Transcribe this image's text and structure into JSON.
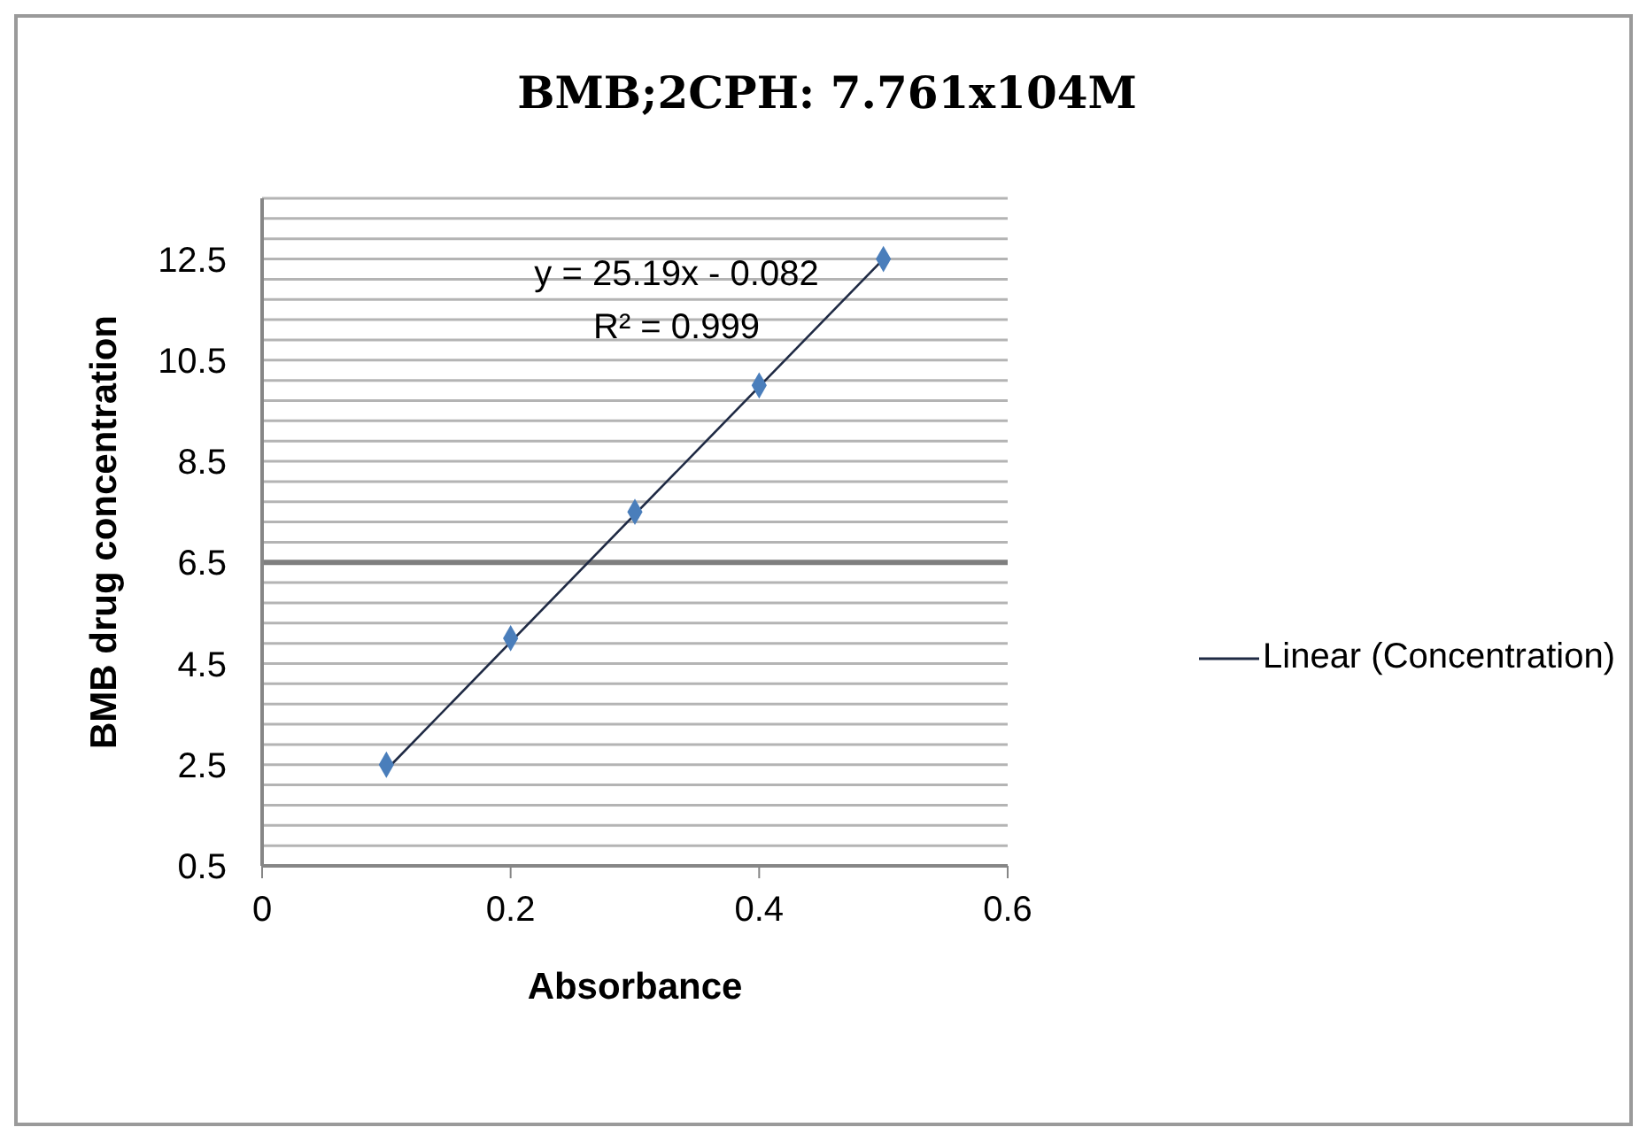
{
  "chart_data": {
    "type": "scatter",
    "title": "BMB;2CPH: 7.761x104M",
    "xlabel": "Absorbance",
    "ylabel": "BMB drug concentration",
    "annotations": [
      "y = 25.19x - 0.082",
      "R² = 0.999"
    ],
    "series": [
      {
        "color": "#4a7ebb",
        "marker": "diamond",
        "x": [
          0.1,
          0.2,
          0.3,
          0.4,
          0.5
        ],
        "values": [
          2.5,
          5,
          7.5,
          10,
          12.5
        ]
      },
      {
        "type": "line",
        "name": "Linear (Concentration)",
        "color": "#1f2a44",
        "marker": "none",
        "x": [
          0.1,
          0.5
        ],
        "values": [
          2.4,
          12.5
        ]
      }
    ],
    "xlim": [
      0,
      0.6
    ],
    "xticks": [
      0,
      0.2,
      0.4,
      0.6
    ],
    "ylim": [
      0.5,
      13.7
    ],
    "yticks": [
      0.5,
      {
        "value": 0.9,
        "label": null
      },
      {
        "value": 1.3,
        "label": null
      },
      {
        "value": 1.7,
        "label": null
      },
      {
        "value": 2.1,
        "label": null
      },
      2.5,
      {
        "value": 2.9,
        "label": null
      },
      {
        "value": 3.3,
        "label": null
      },
      {
        "value": 3.7,
        "label": null
      },
      {
        "value": 4.1,
        "label": null
      },
      4.5,
      {
        "value": 4.9,
        "label": null
      },
      {
        "value": 5.3,
        "label": null
      },
      {
        "value": 5.7,
        "label": null
      },
      {
        "value": 6.1,
        "label": null
      },
      6.5,
      {
        "value": 6.9,
        "label": null
      },
      {
        "value": 7.3,
        "label": null
      },
      {
        "value": 7.7,
        "label": null
      },
      {
        "value": 8.1,
        "label": null
      },
      8.5,
      {
        "value": 8.9,
        "label": null
      },
      {
        "value": 9.3,
        "label": null
      },
      {
        "value": 9.7,
        "label": null
      },
      {
        "value": 10.1,
        "label": null
      },
      10.5,
      {
        "value": 10.9,
        "label": null
      },
      {
        "value": 11.3,
        "label": null
      },
      {
        "value": 11.7,
        "label": null
      },
      {
        "value": 12.1,
        "label": null
      },
      12.5,
      {
        "value": 12.9,
        "label": null
      },
      {
        "value": 13.3,
        "label": null
      },
      {
        "value": 13.7,
        "label": null
      }
    ],
    "ref_lines": [
      {
        "axis": "y",
        "value": 6.5,
        "color": "#7f7f7f"
      }
    ],
    "grid": "y",
    "legend": "right"
  }
}
